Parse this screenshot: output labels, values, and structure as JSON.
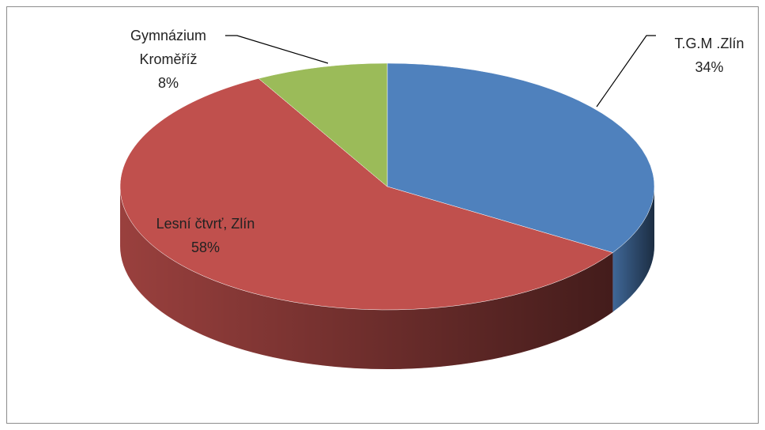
{
  "chart_data": {
    "type": "pie",
    "categories": [
      "T.G.M .Zlín",
      "Lesní čtvrť, Zlín",
      "Gymnázium Kroměříž"
    ],
    "values": [
      34,
      58,
      8
    ],
    "value_labels": [
      "34%",
      "58%",
      "8%"
    ],
    "colors": [
      "#4f81bd",
      "#c0504d",
      "#9bbb59"
    ]
  }
}
